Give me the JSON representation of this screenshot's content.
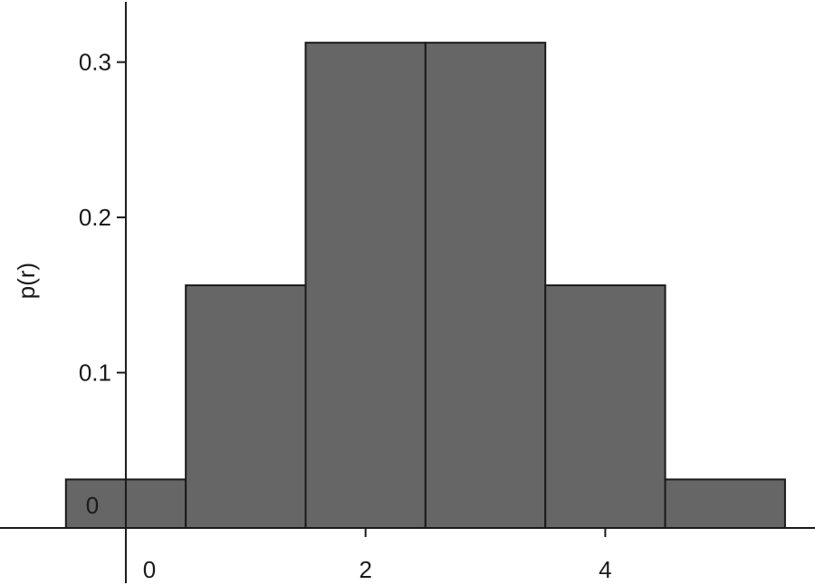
{
  "chart_data": {
    "type": "bar",
    "title": "",
    "xlabel": "",
    "ylabel": "p(r)",
    "x": [
      0,
      1,
      2,
      3,
      4,
      5
    ],
    "values": [
      0.03125,
      0.15625,
      0.3125,
      0.3125,
      0.15625,
      0.03125
    ],
    "bar_width": 1,
    "xlim": [
      -1.05,
      5.75
    ],
    "ylim": [
      0,
      0.34
    ],
    "x_ticks": [
      {
        "value": 0,
        "label": "0"
      },
      {
        "value": 2,
        "label": "2"
      },
      {
        "value": 4,
        "label": "4"
      }
    ],
    "y_ticks": [
      {
        "value": 0,
        "label": "0"
      },
      {
        "value": 0.1,
        "label": "0.1"
      },
      {
        "value": 0.2,
        "label": "0.2"
      },
      {
        "value": 0.3,
        "label": "0.3"
      }
    ],
    "grid": false,
    "legend": "none",
    "colors": {
      "bar_fill": "#666666",
      "bar_edge": "#1a1a1a",
      "axis": "#1a1a1a"
    }
  }
}
